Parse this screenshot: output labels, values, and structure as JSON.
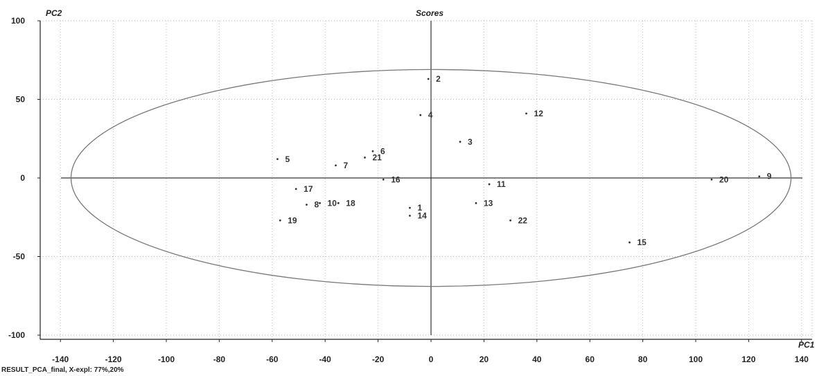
{
  "chart_data": {
    "type": "scatter",
    "title": "Scores",
    "xlabel": "PC1",
    "ylabel": "PC2",
    "xlim": [
      -145,
      145
    ],
    "ylim": [
      -103,
      103
    ],
    "xticks": [
      -140,
      -120,
      -100,
      -80,
      -60,
      -40,
      -20,
      0,
      20,
      40,
      60,
      80,
      100,
      120,
      140
    ],
    "yticks": [
      100,
      50,
      0,
      -50,
      -100
    ],
    "grid": true,
    "ellipse": {
      "rx": 136,
      "ry": 69
    },
    "points": [
      {
        "label": "1",
        "x": -8,
        "y": -19
      },
      {
        "label": "2",
        "x": -1,
        "y": 63
      },
      {
        "label": "3",
        "x": 11,
        "y": 23
      },
      {
        "label": "4",
        "x": -4,
        "y": 40
      },
      {
        "label": "5",
        "x": -58,
        "y": 12
      },
      {
        "label": "6",
        "x": -22,
        "y": 17
      },
      {
        "label": "7",
        "x": -36,
        "y": 8
      },
      {
        "label": "8",
        "x": -47,
        "y": -17
      },
      {
        "label": "9",
        "x": 124,
        "y": 1
      },
      {
        "label": "10",
        "x": -42,
        "y": -16
      },
      {
        "label": "11",
        "x": 22,
        "y": -4
      },
      {
        "label": "12",
        "x": 36,
        "y": 41
      },
      {
        "label": "13",
        "x": 17,
        "y": -16
      },
      {
        "label": "14",
        "x": -8,
        "y": -24
      },
      {
        "label": "15",
        "x": 75,
        "y": -41
      },
      {
        "label": "16",
        "x": -18,
        "y": -1
      },
      {
        "label": "17",
        "x": -51,
        "y": -7
      },
      {
        "label": "18",
        "x": -35,
        "y": -16
      },
      {
        "label": "19",
        "x": -57,
        "y": -27
      },
      {
        "label": "20",
        "x": 106,
        "y": -1
      },
      {
        "label": "21",
        "x": -25,
        "y": 13
      },
      {
        "label": "22",
        "x": 30,
        "y": -27
      }
    ]
  },
  "footer": "RESULT_PCA_final, X-expl: 77%,20%"
}
